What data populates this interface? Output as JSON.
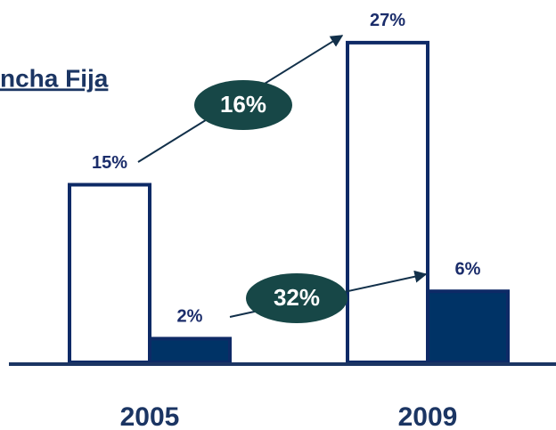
{
  "chart_data": {
    "type": "bar",
    "title": "ncha Fija",
    "categories": [
      "2005",
      "2009"
    ],
    "series": [
      {
        "color": "#ffffff",
        "values": [
          15,
          27
        ],
        "value_labels": [
          "15%",
          "27%"
        ]
      },
      {
        "color": "#003366",
        "values": [
          2,
          6
        ],
        "value_labels": [
          "2%",
          "6%"
        ]
      }
    ],
    "edge_color": "#0e2a66",
    "annotations": [
      "16%",
      "32%"
    ]
  }
}
